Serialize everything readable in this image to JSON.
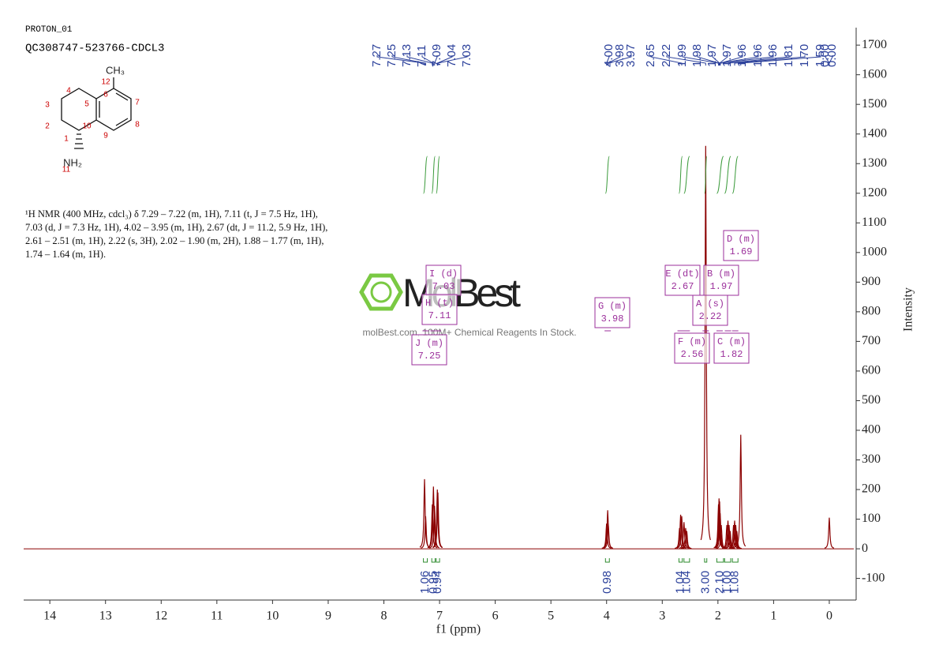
{
  "chart_data": {
    "type": "spectrum",
    "header": [
      "PROTON_01",
      "QC308747-523766-CDCL3"
    ],
    "xlabel": "f1 (ppm)",
    "ylabel": "Intensity",
    "xlim": [
      14.47,
      -0.44
    ],
    "xticks": [
      14,
      13,
      12,
      11,
      10,
      9,
      8,
      7,
      6,
      5,
      4,
      3,
      2,
      1,
      0
    ],
    "ylim": [
      -173,
      1759
    ],
    "yticks": [
      -100,
      0,
      100,
      200,
      300,
      400,
      500,
      600,
      700,
      800,
      900,
      1000,
      1100,
      1200,
      1300,
      1400,
      1500,
      1600,
      1700
    ],
    "color": "#8b0000",
    "x": [
      7.27,
      7.25,
      7.13,
      7.11,
      7.09,
      7.04,
      7.03,
      4.0,
      3.98,
      3.97,
      2.69,
      2.67,
      2.65,
      2.61,
      2.58,
      2.56,
      2.22,
      1.99,
      1.98,
      1.97,
      1.96,
      1.94,
      1.84,
      1.82,
      1.8,
      1.78,
      1.72,
      1.7,
      1.68,
      1.66,
      1.59,
      0.0
    ],
    "values": [
      235,
      110,
      150,
      210,
      145,
      200,
      190,
      85,
      130,
      85,
      70,
      115,
      110,
      90,
      70,
      60,
      1360,
      150,
      170,
      160,
      120,
      80,
      80,
      95,
      80,
      60,
      80,
      95,
      80,
      60,
      385,
      105
    ],
    "peak_picks": [
      7.27,
      7.25,
      7.13,
      7.11,
      7.09,
      7.04,
      7.03,
      {
        "value": 4,
        "label": "4.00"
      },
      3.98,
      3.97,
      2.65,
      2.22,
      1.99,
      1.98,
      1.97,
      1.97,
      1.96,
      1.96,
      1.96,
      1.81,
      {
        "value": 1.7,
        "label": "1.70"
      },
      1.59,
      {
        "value": 0,
        "label": "0.00"
      },
      {
        "value": 0,
        "label": "0.00"
      }
    ],
    "integrals": [
      {
        "range": [
          7.29,
          7.22
        ],
        "value": 1.06
      },
      {
        "range": [
          7.14,
          7.08
        ],
        "value": 0.95
      },
      {
        "range": [
          7.06,
          7.0
        ],
        "value": 0.94
      },
      {
        "range": [
          4.02,
          3.95
        ],
        "value": 0.98
      },
      {
        "range": [
          2.7,
          2.64
        ],
        "value": 1.04
      },
      {
        "range": [
          2.61,
          2.51
        ],
        "value": 1.04
      },
      {
        "range": [
          2.24,
          2.2
        ],
        "value": 3,
        "label": "3.00"
      },
      {
        "range": [
          2.02,
          1.9
        ],
        "value": 2.1,
        "label": "2.10"
      },
      {
        "range": [
          1.88,
          1.77
        ],
        "value": 1,
        "label": "1.00"
      },
      {
        "range": [
          1.74,
          1.64
        ],
        "value": 1.08
      }
    ],
    "multiplets": [
      {
        "label": "I (d)",
        "shift": 7.03
      },
      {
        "label": "H (t)",
        "shift": 7.11
      },
      {
        "label": "J (m)",
        "shift": 7.25
      },
      {
        "label": "G (m)",
        "shift": 3.98
      },
      {
        "label": "E (dt)",
        "shift": 2.67
      },
      {
        "label": "B (m)",
        "shift": 1.97
      },
      {
        "label": "D (m)",
        "shift": 1.69
      },
      {
        "label": "A (s)",
        "shift": 2.22
      },
      {
        "label": "F (m)",
        "shift": 2.56
      },
      {
        "label": "C (m)",
        "shift": 1.82
      }
    ],
    "structure": {
      "atoms": [
        "1",
        "2",
        "3",
        "4",
        "5",
        "6",
        "7",
        "8",
        "9",
        "10",
        "11",
        "12"
      ],
      "methyl": "CH₃",
      "amine": "NH₂"
    },
    "description": "¹H NMR (400 MHz, cdcl₃) δ 7.29 – 7.22 (m, 1H), 7.11 (t, J = 7.5 Hz, 1H), 7.03 (d, J = 7.3 Hz, 1H), 4.02 – 3.95 (m, 1H), 2.67 (dt, J = 11.2, 5.9 Hz, 1H), 2.61 – 2.51 (m, 1H), 2.22 (s, 3H), 2.02 – 1.90 (m, 2H), 1.88 – 1.77 (m, 1H), 1.74 – 1.64 (m, 1H).",
    "watermark": {
      "brand": "MolBest",
      "slogan": "molBest.com, 100M+ Chemical Reagents In Stock."
    }
  }
}
